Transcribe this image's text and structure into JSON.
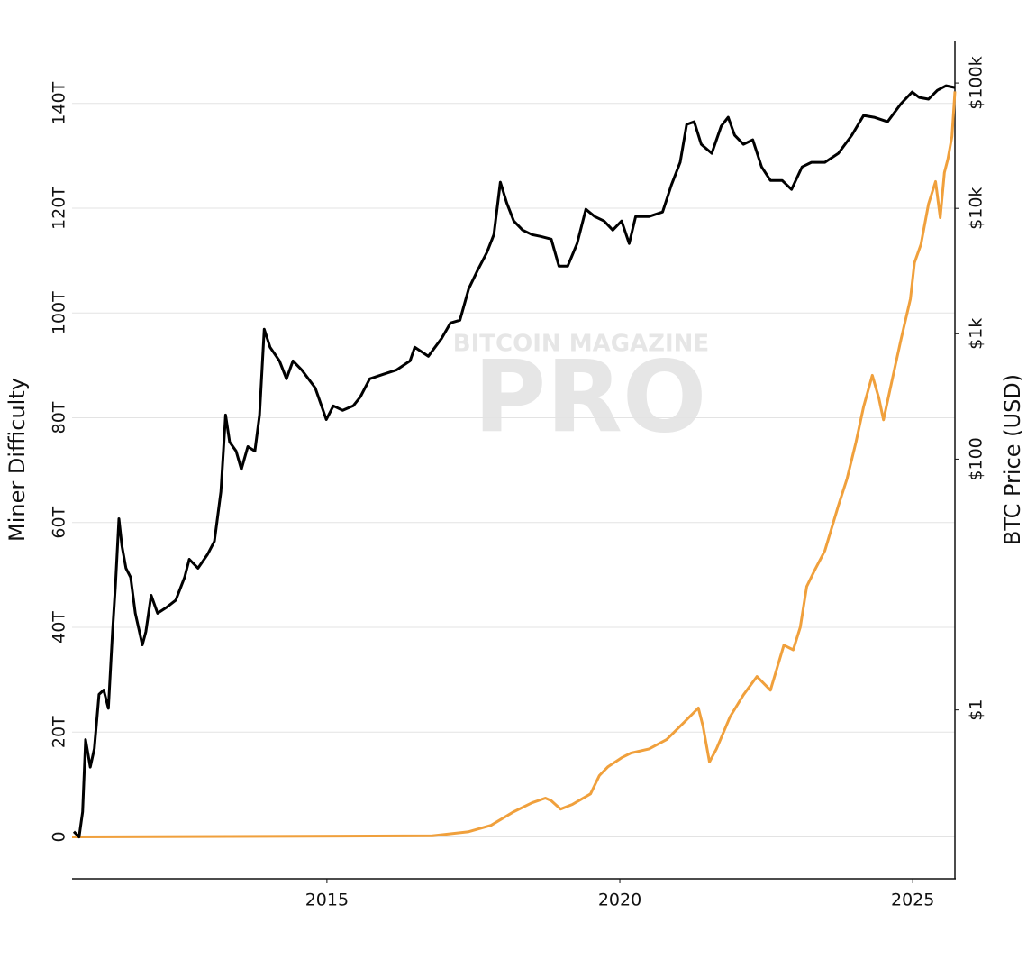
{
  "chart_data": {
    "type": "line",
    "watermark": {
      "top": "BITCOIN MAGAZINE",
      "main": "PRO"
    },
    "ylabel": "Miner Difficulty",
    "y2label": "BTC Price (USD)",
    "xlim": [
      2010.65,
      2025.72
    ],
    "xticks": [
      2015,
      2020,
      2025
    ],
    "ylim": [
      -8,
      152
    ],
    "yticks": [
      0,
      {
        "value": 20,
        "label": "20T"
      },
      {
        "value": 40,
        "label": "40T"
      },
      {
        "value": 60,
        "label": "60T"
      },
      {
        "value": 80,
        "label": "80T"
      },
      {
        "value": 100,
        "label": "100T"
      },
      {
        "value": 120,
        "label": "120T"
      },
      {
        "value": 140,
        "label": "140T"
      }
    ],
    "y2lim": [
      0.045,
      218000
    ],
    "y2scale": "log",
    "y2ticks": [
      {
        "value": 1,
        "label": "$1"
      },
      {
        "value": 100,
        "label": "$100"
      },
      {
        "value": 1000,
        "label": "$1k"
      },
      {
        "value": 10000,
        "label": "$10k"
      },
      {
        "value": 100000,
        "label": "$100k"
      }
    ],
    "grid": true,
    "series": [
      {
        "name": "BTC Price",
        "color": "#000000",
        "axis": "y2",
        "x": [
          2010.68,
          2010.77,
          2010.83,
          2010.88,
          2010.96,
          2011.03,
          2011.11,
          2011.19,
          2011.27,
          2011.34,
          2011.39,
          2011.45,
          2011.5,
          2011.57,
          2011.65,
          2011.73,
          2011.8,
          2011.85,
          2011.91,
          2012.0,
          2012.11,
          2012.27,
          2012.42,
          2012.57,
          2012.65,
          2012.8,
          2012.96,
          2013.08,
          2013.19,
          2013.27,
          2013.34,
          2013.45,
          2013.54,
          2013.65,
          2013.77,
          2013.85,
          2013.93,
          2014.03,
          2014.19,
          2014.31,
          2014.42,
          2014.57,
          2014.8,
          2014.99,
          2015.11,
          2015.27,
          2015.45,
          2015.57,
          2015.73,
          2015.96,
          2016.19,
          2016.42,
          2016.5,
          2016.73,
          2016.96,
          2017.11,
          2017.27,
          2017.42,
          2017.57,
          2017.73,
          2017.85,
          2017.96,
          2018.07,
          2018.19,
          2018.34,
          2018.5,
          2018.65,
          2018.83,
          2018.96,
          2019.11,
          2019.27,
          2019.42,
          2019.57,
          2019.73,
          2019.88,
          2020.03,
          2020.16,
          2020.27,
          2020.5,
          2020.73,
          2020.88,
          2021.03,
          2021.14,
          2021.27,
          2021.39,
          2021.57,
          2021.73,
          2021.85,
          2021.96,
          2022.11,
          2022.27,
          2022.42,
          2022.57,
          2022.77,
          2022.93,
          2023.11,
          2023.27,
          2023.5,
          2023.73,
          2023.96,
          2024.16,
          2024.34,
          2024.57,
          2024.8,
          2024.99,
          2025.11,
          2025.27,
          2025.42,
          2025.57,
          2025.72
        ],
        "values": [
          0.107,
          0.097,
          0.154,
          0.58,
          0.35,
          0.49,
          1.33,
          1.44,
          1.03,
          4.2,
          9.7,
          33.5,
          20.4,
          13.5,
          11.4,
          5.9,
          4.2,
          3.3,
          4.2,
          8.2,
          5.9,
          6.6,
          7.5,
          11.4,
          15.9,
          13.5,
          17.3,
          22.1,
          55,
          225,
          137,
          116,
          83,
          126,
          116,
          225,
          1086,
          780,
          608,
          437,
          608,
          515,
          370,
          207,
          266,
          245,
          266,
          313,
          437,
          475,
          515,
          608,
          780,
          661,
          920,
          1220,
          1282,
          2290,
          3190,
          4440,
          6180,
          16180,
          11040,
          7930,
          6710,
          6180,
          5980,
          5690,
          3465,
          3465,
          5240,
          9840,
          8610,
          7930,
          6710,
          7930,
          5240,
          8610,
          8610,
          9360,
          15380,
          23280,
          46690,
          49090,
          32430,
          27480,
          45150,
          53330,
          38280,
          32430,
          35240,
          21420,
          16710,
          16710,
          14160,
          21420,
          23280,
          23280,
          27480,
          38280,
          55080,
          53330,
          49090,
          68390,
          84720,
          76740,
          74300,
          87500,
          95100,
          92000
        ]
      },
      {
        "name": "Miner Difficulty",
        "color": "#f0a03c",
        "axis": "y",
        "x": [
          2010.65,
          2016.8,
          2017.42,
          2017.8,
          2018.19,
          2018.5,
          2018.73,
          2018.83,
          2018.99,
          2019.19,
          2019.5,
          2019.65,
          2019.8,
          2020.03,
          2020.19,
          2020.5,
          2020.8,
          2021.11,
          2021.34,
          2021.42,
          2021.53,
          2021.65,
          2021.88,
          2022.11,
          2022.34,
          2022.57,
          2022.8,
          2022.96,
          2023.08,
          2023.19,
          2023.34,
          2023.5,
          2023.73,
          2023.88,
          2024.03,
          2024.16,
          2024.31,
          2024.42,
          2024.5,
          2024.65,
          2024.8,
          2024.96,
          2025.03,
          2025.14,
          2025.27,
          2025.39,
          2025.47,
          2025.54,
          2025.6,
          2025.67,
          2025.72
        ],
        "values": [
          0,
          0.2,
          1.0,
          2.2,
          4.8,
          6.5,
          7.4,
          6.9,
          5.3,
          6.2,
          8.2,
          11.7,
          13.4,
          15.1,
          16.0,
          16.8,
          18.6,
          22.0,
          24.6,
          21.1,
          14.3,
          16.8,
          22.9,
          27.1,
          30.6,
          28.0,
          36.6,
          35.7,
          40.0,
          47.8,
          51.2,
          54.6,
          63.2,
          68.4,
          75.3,
          82.1,
          88.1,
          83.8,
          79.6,
          87.3,
          95.0,
          102.7,
          109.6,
          113.1,
          120.8,
          125.1,
          118.2,
          126.8,
          129.4,
          133.7,
          142.3
        ]
      }
    ]
  }
}
